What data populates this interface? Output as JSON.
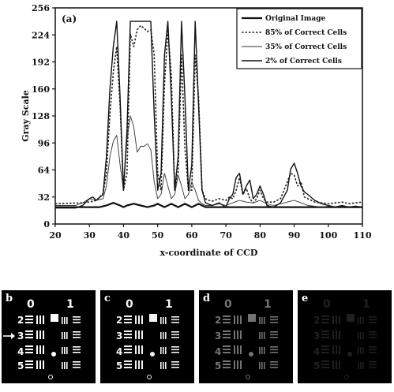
{
  "chart_data": {
    "type": "line",
    "panel_label": "(a)",
    "xlabel": "x-coordinate of CCD",
    "ylabel": "Gray Scale",
    "xlim": [
      20,
      110
    ],
    "ylim": [
      0,
      256
    ],
    "xticks": [
      20,
      30,
      40,
      50,
      60,
      70,
      80,
      90,
      100,
      110
    ],
    "yticks": [
      0,
      32,
      64,
      96,
      128,
      160,
      192,
      224,
      256
    ],
    "legend_position": "top-right",
    "series": [
      {
        "name": "Original Image",
        "style": "solid-bold",
        "x": [
          20,
          30,
          33,
          35,
          37,
          39,
          40,
          41,
          43,
          45,
          47,
          49,
          50,
          51,
          52,
          53,
          54,
          55,
          56,
          57,
          58,
          59,
          60,
          61,
          62,
          63,
          64,
          70,
          110
        ],
        "y": [
          20,
          20,
          20,
          22,
          25,
          22,
          20,
          22,
          24,
          22,
          20,
          22,
          24,
          22,
          20,
          22,
          24,
          22,
          20,
          22,
          24,
          22,
          20,
          22,
          24,
          22,
          20,
          20,
          20
        ]
      },
      {
        "name": "85% of Correct Cells",
        "style": "dotted",
        "x": [
          20,
          28,
          30,
          32,
          34,
          35,
          36,
          37,
          38,
          39,
          40,
          41,
          42,
          43,
          44,
          45,
          46,
          47,
          48,
          49,
          50,
          51,
          52,
          53,
          54,
          55,
          56,
          57,
          58,
          59,
          60,
          61,
          62,
          63,
          64,
          65,
          66,
          68,
          70,
          71,
          72,
          73,
          74,
          75,
          76,
          77,
          78,
          79,
          80,
          81,
          82,
          84,
          86,
          88,
          89,
          90,
          91,
          92,
          93,
          94,
          95,
          96,
          98,
          100,
          102,
          104,
          106,
          108,
          110
        ],
        "y": [
          24,
          25,
          26,
          28,
          36,
          60,
          130,
          180,
          210,
          140,
          40,
          60,
          225,
          210,
          230,
          235,
          232,
          228,
          230,
          200,
          60,
          40,
          165,
          230,
          175,
          40,
          60,
          200,
          90,
          40,
          40,
          200,
          150,
          40,
          30,
          28,
          27,
          30,
          28,
          32,
          30,
          40,
          55,
          35,
          42,
          30,
          25,
          30,
          40,
          30,
          26,
          26,
          30,
          50,
          60,
          58,
          45,
          50,
          32,
          30,
          28,
          26,
          25,
          24,
          25,
          26,
          24,
          25,
          26
        ]
      },
      {
        "name": "35% of Correct Cells",
        "style": "solid-thin",
        "x": [
          20,
          26,
          28,
          30,
          32,
          34,
          35,
          36,
          37,
          38,
          39,
          40,
          41,
          42,
          43,
          44,
          45,
          46,
          47,
          48,
          49,
          50,
          51,
          52,
          53,
          54,
          55,
          56,
          57,
          58,
          59,
          60,
          61,
          62,
          63,
          64,
          66,
          68,
          70,
          72,
          74,
          76,
          78,
          80,
          82,
          84,
          86,
          88,
          90,
          92,
          94,
          96,
          98,
          100,
          102,
          104,
          106,
          108,
          110
        ],
        "y": [
          22,
          22,
          25,
          30,
          28,
          30,
          45,
          80,
          98,
          105,
          70,
          40,
          100,
          128,
          115,
          85,
          92,
          92,
          95,
          88,
          50,
          30,
          35,
          60,
          45,
          30,
          35,
          58,
          45,
          30,
          35,
          50,
          40,
          28,
          24,
          22,
          22,
          24,
          22,
          25,
          28,
          26,
          25,
          28,
          24,
          22,
          24,
          26,
          28,
          25,
          22,
          21,
          20,
          21,
          20,
          21,
          20,
          21,
          20
        ]
      },
      {
        "name": "2% of Correct Cells",
        "style": "solid-medium",
        "x": [
          20,
          26,
          28,
          30,
          31,
          32,
          34,
          35,
          36,
          37,
          38,
          39,
          40,
          41,
          42,
          48,
          49,
          50,
          51,
          52,
          53,
          54,
          55,
          56,
          57,
          58,
          59,
          60,
          61,
          62,
          63,
          64,
          66,
          68,
          70,
          71,
          72,
          73,
          74,
          75,
          76,
          77,
          78,
          79,
          80,
          81,
          82,
          84,
          86,
          88,
          89,
          90,
          91,
          92,
          93,
          94,
          96,
          98,
          100,
          102,
          104,
          106,
          108,
          110
        ],
        "y": [
          19,
          19,
          22,
          30,
          32,
          28,
          35,
          80,
          160,
          210,
          240,
          150,
          40,
          110,
          240,
          240,
          130,
          40,
          60,
          200,
          240,
          150,
          40,
          80,
          240,
          150,
          40,
          70,
          240,
          140,
          40,
          25,
          22,
          25,
          20,
          30,
          35,
          55,
          60,
          35,
          45,
          52,
          30,
          35,
          45,
          35,
          22,
          20,
          25,
          40,
          65,
          72,
          60,
          45,
          38,
          35,
          28,
          24,
          22,
          20,
          22,
          20,
          21,
          20
        ]
      }
    ]
  },
  "thumbnails": [
    {
      "label": "b"
    },
    {
      "label": "c"
    },
    {
      "label": "d"
    },
    {
      "label": "e"
    }
  ]
}
